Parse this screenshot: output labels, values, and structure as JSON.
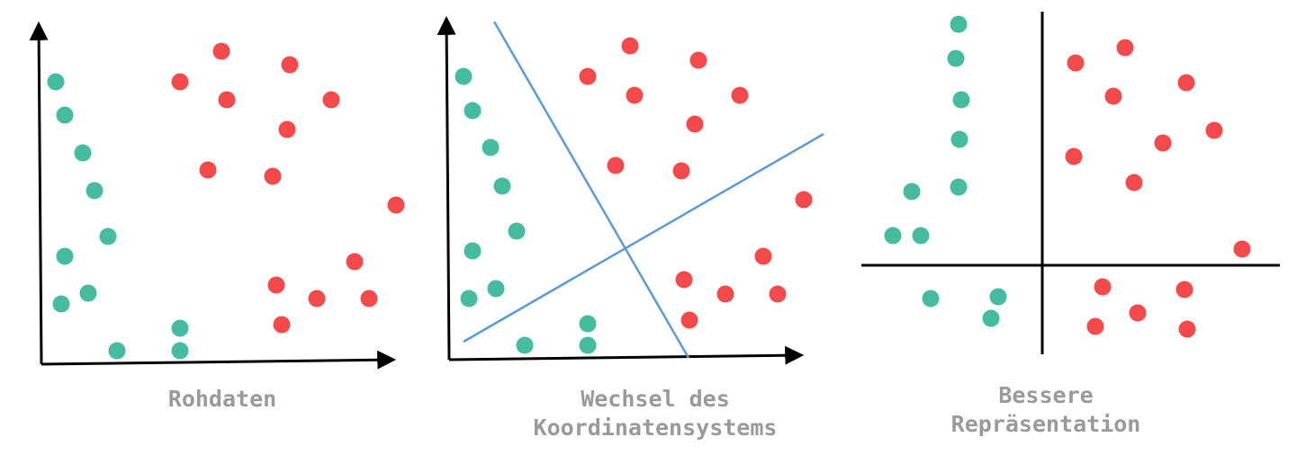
{
  "colors": {
    "class_a": "#45bb9f",
    "class_b": "#f54a4b",
    "axis": "#000000",
    "transform_line": "#5b9bd5",
    "caption": "#9a9a9a"
  },
  "panels": [
    {
      "name": "raw-data",
      "caption": [
        "Rohdaten"
      ],
      "class_a_points": [
        [
          62,
          91
        ],
        [
          72,
          128
        ],
        [
          92,
          170
        ],
        [
          105,
          212
        ],
        [
          120,
          263
        ],
        [
          72,
          285
        ],
        [
          98,
          326
        ],
        [
          68,
          338
        ],
        [
          130,
          390
        ],
        [
          200,
          365
        ],
        [
          200,
          390
        ]
      ],
      "class_b_points": [
        [
          246,
          57
        ],
        [
          200,
          91
        ],
        [
          252,
          111
        ],
        [
          322,
          72
        ],
        [
          368,
          111
        ],
        [
          319,
          144
        ],
        [
          231,
          189
        ],
        [
          303,
          196
        ],
        [
          440,
          228
        ],
        [
          394,
          291
        ],
        [
          307,
          317
        ],
        [
          352,
          332
        ],
        [
          410,
          332
        ],
        [
          313,
          361
        ]
      ]
    },
    {
      "name": "coordinate-change",
      "caption": [
        "Wechsel des",
        "Koordinatensystems"
      ],
      "class_a_points": [
        [
          515,
          85
        ],
        [
          525,
          123
        ],
        [
          545,
          164
        ],
        [
          558,
          207
        ],
        [
          574,
          257
        ],
        [
          525,
          279
        ],
        [
          551,
          321
        ],
        [
          521,
          332
        ],
        [
          583,
          384
        ],
        [
          653,
          360
        ],
        [
          653,
          384
        ]
      ],
      "class_b_points": [
        [
          700,
          51
        ],
        [
          653,
          85
        ],
        [
          705,
          106
        ],
        [
          776,
          67
        ],
        [
          822,
          106
        ],
        [
          772,
          138
        ],
        [
          684,
          184
        ],
        [
          757,
          190
        ],
        [
          893,
          222
        ],
        [
          848,
          285
        ],
        [
          760,
          311
        ],
        [
          806,
          327
        ],
        [
          864,
          327
        ],
        [
          766,
          356
        ]
      ]
    },
    {
      "name": "better-representation",
      "caption": [
        "Bessere",
        "Repräsentation"
      ],
      "class_a_points": [
        [
          1065,
          27
        ],
        [
          1062,
          65
        ],
        [
          1068,
          111
        ],
        [
          1066,
          155
        ],
        [
          1065,
          208
        ],
        [
          1013,
          213
        ],
        [
          992,
          262
        ],
        [
          1023,
          262
        ],
        [
          1034,
          332
        ],
        [
          1109,
          330
        ],
        [
          1101,
          354
        ]
      ],
      "class_b_points": [
        [
          1250,
          53
        ],
        [
          1195,
          70
        ],
        [
          1237,
          107
        ],
        [
          1318,
          92
        ],
        [
          1349,
          145
        ],
        [
          1292,
          159
        ],
        [
          1193,
          174
        ],
        [
          1260,
          203
        ],
        [
          1380,
          277
        ],
        [
          1225,
          319
        ],
        [
          1316,
          322
        ],
        [
          1264,
          348
        ],
        [
          1217,
          363
        ],
        [
          1319,
          366
        ]
      ]
    }
  ]
}
